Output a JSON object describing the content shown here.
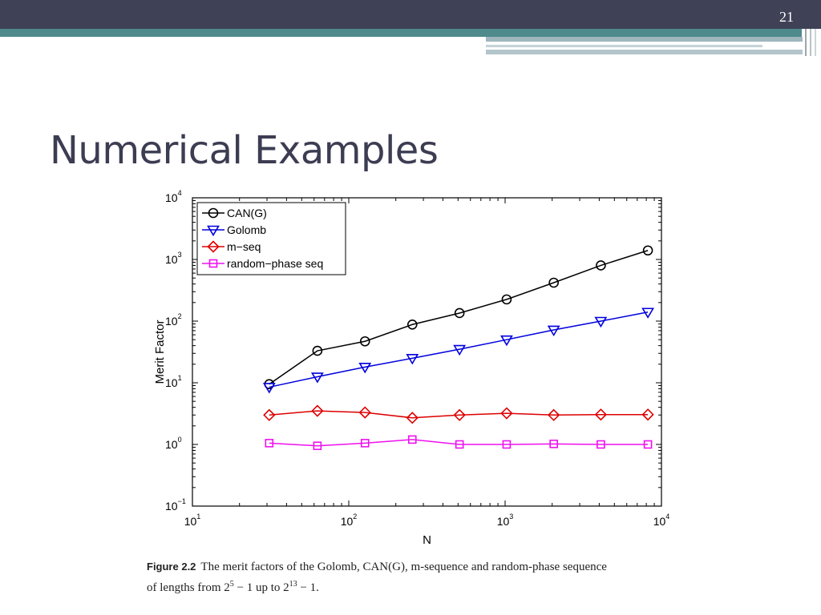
{
  "slide": {
    "number": "21",
    "title": "Numerical Examples"
  },
  "figure": {
    "label": "Figure 2.2",
    "caption_line1": "The merit factors of the Golomb, CAN(G), m-sequence and random-phase sequence",
    "caption_line2_pre": "of lengths from 2",
    "caption_exp1": "5",
    "caption_line2_mid": " − 1 up to 2",
    "caption_exp2": "13",
    "caption_line2_post": " − 1."
  },
  "chart_data": {
    "type": "line",
    "xlabel": "N",
    "ylabel": "Merit Factor",
    "x_scale": "log",
    "y_scale": "log",
    "xlim": [
      10,
      10000
    ],
    "ylim": [
      0.1,
      10000
    ],
    "x_ticks": [
      {
        "base": "10",
        "exp": "1"
      },
      {
        "base": "10",
        "exp": "2"
      },
      {
        "base": "10",
        "exp": "3"
      },
      {
        "base": "10",
        "exp": "4"
      }
    ],
    "y_ticks": [
      {
        "base": "10",
        "exp": "−1"
      },
      {
        "base": "10",
        "exp": "0"
      },
      {
        "base": "10",
        "exp": "1"
      },
      {
        "base": "10",
        "exp": "2"
      },
      {
        "base": "10",
        "exp": "3"
      },
      {
        "base": "10",
        "exp": "4"
      }
    ],
    "legend_position": "top-left",
    "x": [
      31,
      63,
      127,
      255,
      511,
      1023,
      2047,
      4095,
      8191
    ],
    "series": [
      {
        "name": "CAN(G)",
        "color": "#000000",
        "marker": "circle",
        "values": [
          9.5,
          33,
          47,
          88,
          135,
          225,
          420,
          800,
          1400
        ]
      },
      {
        "name": "Golomb",
        "color": "#0000dd",
        "marker": "triangle-down",
        "values": [
          8.5,
          12.5,
          18,
          25,
          35,
          50,
          72,
          100,
          140
        ]
      },
      {
        "name": "m−seq",
        "color": "#dd0000",
        "marker": "diamond",
        "values": [
          3.0,
          3.5,
          3.3,
          2.7,
          3.0,
          3.2,
          3.0,
          3.05,
          3.05
        ]
      },
      {
        "name": "random−phase seq",
        "color": "#ee11ee",
        "marker": "square",
        "values": [
          1.05,
          0.95,
          1.05,
          1.2,
          1.0,
          1.0,
          1.02,
          1.0,
          1.0
        ]
      }
    ]
  }
}
